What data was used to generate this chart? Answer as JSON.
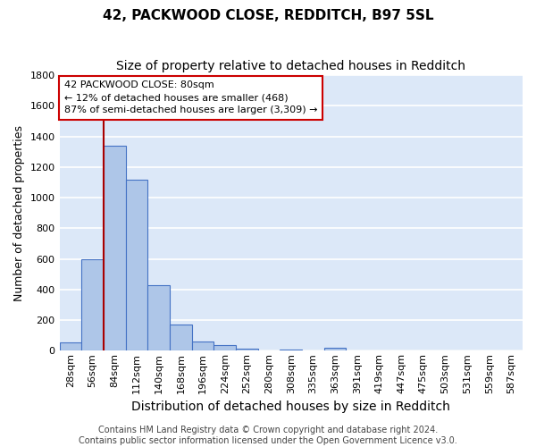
{
  "title": "42, PACKWOOD CLOSE, REDDITCH, B97 5SL",
  "subtitle": "Size of property relative to detached houses in Redditch",
  "xlabel": "Distribution of detached houses by size in Redditch",
  "ylabel": "Number of detached properties",
  "categories": [
    "28sqm",
    "56sqm",
    "84sqm",
    "112sqm",
    "140sqm",
    "168sqm",
    "196sqm",
    "224sqm",
    "252sqm",
    "280sqm",
    "308sqm",
    "335sqm",
    "363sqm",
    "391sqm",
    "419sqm",
    "447sqm",
    "475sqm",
    "503sqm",
    "531sqm",
    "559sqm",
    "587sqm"
  ],
  "values": [
    55,
    600,
    1340,
    1115,
    425,
    170,
    60,
    38,
    12,
    0,
    10,
    0,
    20,
    0,
    0,
    0,
    0,
    0,
    0,
    0,
    0
  ],
  "bar_color": "#aec6e8",
  "bar_edge_color": "#4472c4",
  "bg_color": "#dce8f8",
  "grid_color": "#ffffff",
  "vline_color": "#aa0000",
  "annotation_text": "42 PACKWOOD CLOSE: 80sqm\n← 12% of detached houses are smaller (468)\n87% of semi-detached houses are larger (3,309) →",
  "annotation_box_color": "#ffffff",
  "annotation_box_edge": "#cc0000",
  "footer": "Contains HM Land Registry data © Crown copyright and database right 2024.\nContains public sector information licensed under the Open Government Licence v3.0.",
  "ylim": [
    0,
    1800
  ],
  "yticks": [
    0,
    200,
    400,
    600,
    800,
    1000,
    1200,
    1400,
    1600,
    1800
  ],
  "title_fontsize": 11,
  "subtitle_fontsize": 10,
  "xlabel_fontsize": 10,
  "ylabel_fontsize": 9,
  "tick_fontsize": 8,
  "annotation_fontsize": 8,
  "footer_fontsize": 7
}
